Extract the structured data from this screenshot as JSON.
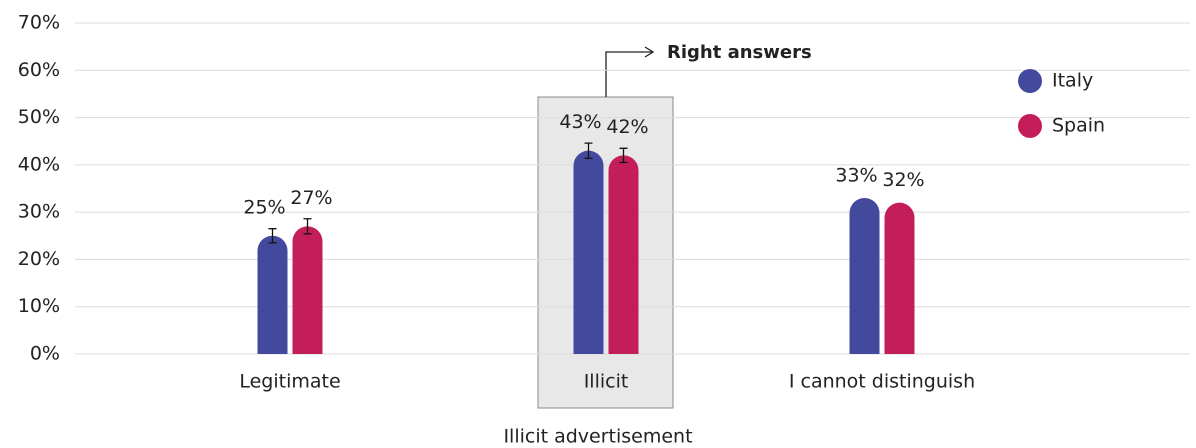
{
  "chart_data": {
    "type": "bar",
    "categories": [
      "Legitimate",
      "Illicit",
      "I cannot distinguish"
    ],
    "series": [
      {
        "name": "Italy",
        "color": "#434a9e",
        "values": [
          25,
          43,
          33
        ],
        "value_labels": [
          "25%",
          "43%",
          "33%"
        ],
        "errors": [
          1.5,
          1.6,
          null
        ]
      },
      {
        "name": "Spain",
        "color": "#c41e5a",
        "values": [
          27,
          42,
          32
        ],
        "value_labels": [
          "27%",
          "42%",
          "32%"
        ],
        "errors": [
          1.6,
          1.5,
          null
        ]
      }
    ],
    "ylim": [
      0,
      70
    ],
    "yticks": [
      {
        "value": 0,
        "label": "0%"
      },
      {
        "value": 10,
        "label": "10%"
      },
      {
        "value": 20,
        "label": "20%"
      },
      {
        "value": 30,
        "label": "30%"
      },
      {
        "value": 40,
        "label": "40%"
      },
      {
        "value": 50,
        "label": "50%"
      },
      {
        "value": 60,
        "label": "60%"
      },
      {
        "value": 70,
        "label": "70%"
      }
    ],
    "grid": true,
    "xlabel": "Illicit advertisement",
    "annotation": "Right answers",
    "legend": "upper right"
  }
}
